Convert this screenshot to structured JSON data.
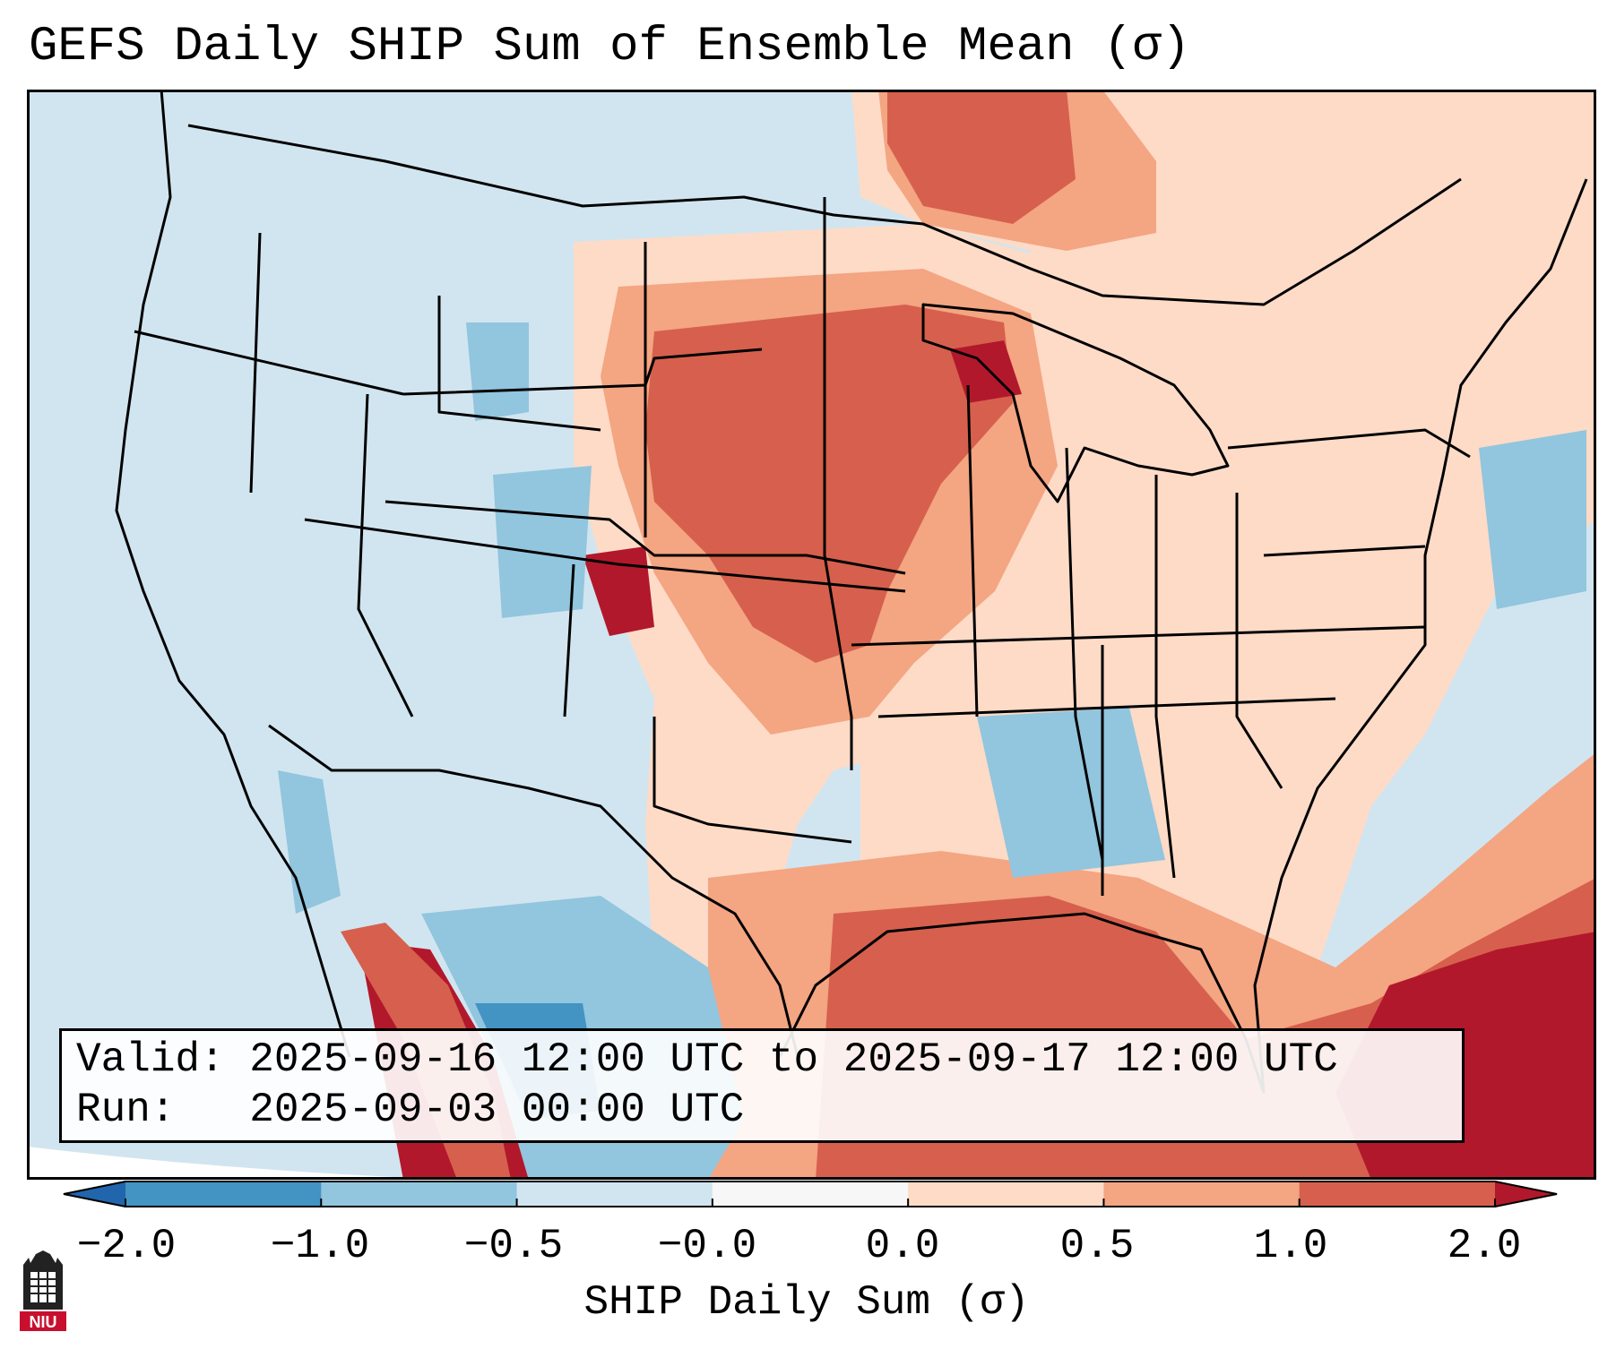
{
  "title": "GEFS Daily SHIP Sum of Ensemble Mean (σ)",
  "valid_line": "Valid: 2025-09-16 12:00 UTC to 2025-09-17 12:00 UTC",
  "run_line": "Run:   2025-09-03 00:00 UTC",
  "colorbar": {
    "label": "SHIP Daily Sum (σ)",
    "ticks": [
      "−2.0",
      "−1.0",
      "−0.5",
      "−0.0",
      "0.0",
      "0.5",
      "1.0",
      "2.0"
    ],
    "colors": [
      "#4393c3",
      "#92c5de",
      "#d1e5f0",
      "#f7f7f7",
      "#fddbc7",
      "#f4a582",
      "#d6604d"
    ],
    "under_color": "#2166ac",
    "over_color": "#b2182b"
  },
  "logo": {
    "text": "NIU",
    "icon": "niu-tower-logo"
  },
  "map": {
    "projection": "Lambert Conformal - Contiguous United States",
    "ocean_color": "#d1e5f0",
    "border_color": "#000000"
  }
}
